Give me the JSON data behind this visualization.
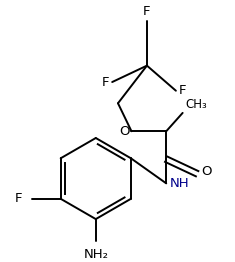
{
  "bg_color": "#ffffff",
  "bond_color": "#000000",
  "text_color": "#000000",
  "nh_color": "#00008b",
  "figsize": [
    2.35,
    2.62
  ],
  "dpi": 100,
  "xlim": [
    0,
    235
  ],
  "ylim": [
    0,
    262
  ]
}
